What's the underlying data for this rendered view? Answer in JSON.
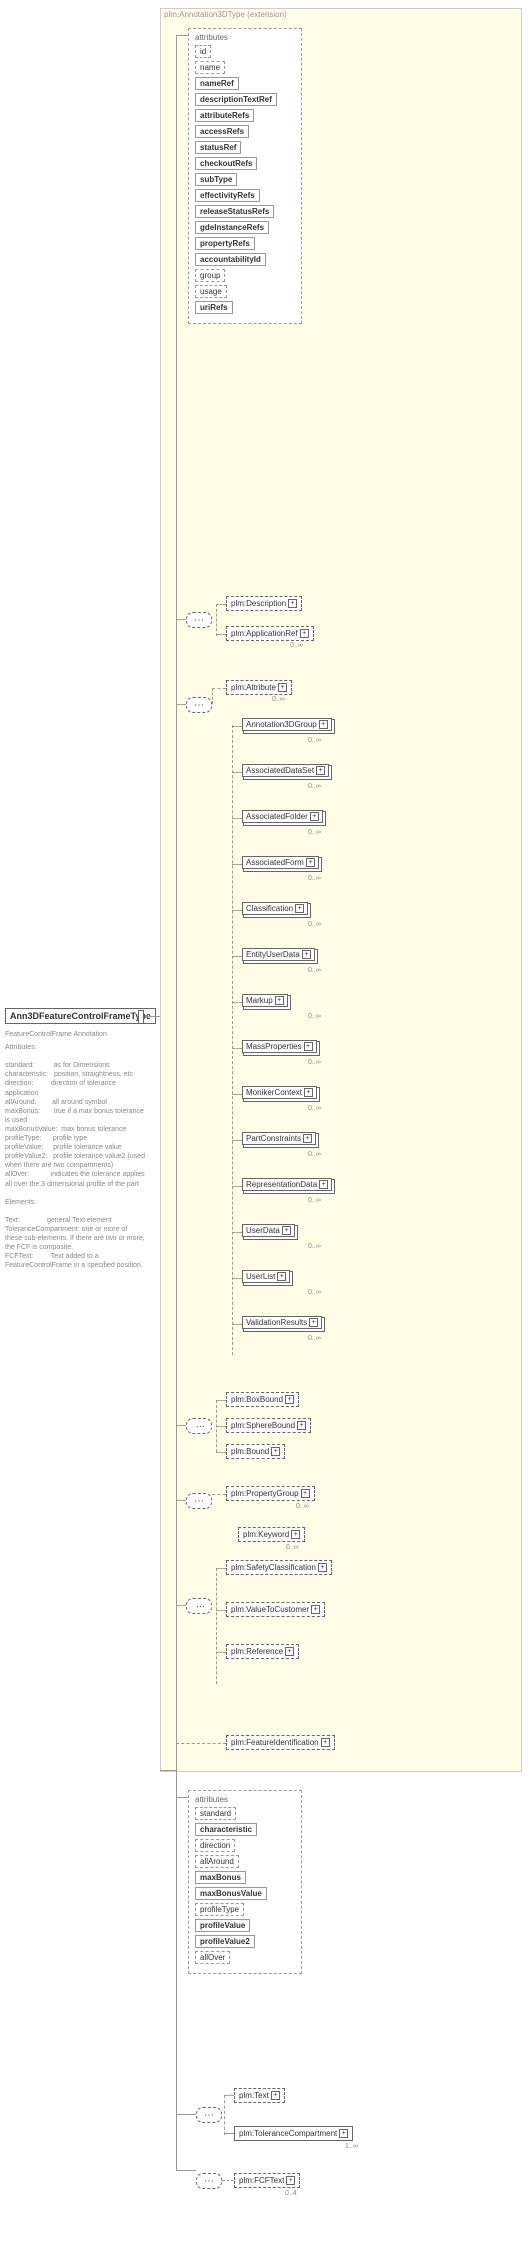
{
  "root": "Ann3DFeatureControlFrameType",
  "extension_label": "plm:Annotation3DType (extension)",
  "attributes_label": "attributes",
  "ext_attributes": [
    {
      "name": "id",
      "solid": false
    },
    {
      "name": "name",
      "solid": false
    },
    {
      "name": "nameRef",
      "solid": true
    },
    {
      "name": "descriptionTextRef",
      "solid": true
    },
    {
      "name": "attributeRefs",
      "solid": true
    },
    {
      "name": "accessRefs",
      "solid": true
    },
    {
      "name": "statusRef",
      "solid": true
    },
    {
      "name": "checkoutRefs",
      "solid": true
    },
    {
      "name": "subType",
      "solid": true
    },
    {
      "name": "effectivityRefs",
      "solid": true
    },
    {
      "name": "releaseStatusRefs",
      "solid": true
    },
    {
      "name": "gdeInstanceRefs",
      "solid": true
    },
    {
      "name": "propertyRefs",
      "solid": true
    },
    {
      "name": "accountabilityId",
      "solid": true
    },
    {
      "name": "group",
      "solid": false
    },
    {
      "name": "usage",
      "solid": false
    },
    {
      "name": "uriRefs",
      "solid": true
    }
  ],
  "seq1": [
    {
      "name": "plm:Description",
      "occ": "",
      "dashed": true,
      "plus": true
    },
    {
      "name": "plm:ApplicationRef",
      "occ": "0..∞",
      "dashed": true,
      "plus": true
    }
  ],
  "attribute_elem": {
    "name": "plm:Attribute",
    "occ": "0..∞"
  },
  "subst_group": [
    {
      "name": "Annotation3DGroup"
    },
    {
      "name": "AssociatedDataSet"
    },
    {
      "name": "AssociatedFolder"
    },
    {
      "name": "AssociatedForm"
    },
    {
      "name": "Classification"
    },
    {
      "name": "EntityUserData"
    },
    {
      "name": "Markup"
    },
    {
      "name": "MassProperties"
    },
    {
      "name": "MonikerContext"
    },
    {
      "name": "PartConstraints"
    },
    {
      "name": "RepresentationData"
    },
    {
      "name": "UserData"
    },
    {
      "name": "UserList"
    },
    {
      "name": "ValidationResults"
    }
  ],
  "bound_group": [
    {
      "name": "plm:BoxBound"
    },
    {
      "name": "plm:SphereBound"
    },
    {
      "name": "plm:Bound"
    }
  ],
  "property_group": {
    "name": "plm:PropertyGroup",
    "occ": "0..∞"
  },
  "keyword": {
    "name": "plm:Keyword",
    "occ": "0..∞"
  },
  "classif_group": [
    {
      "name": "plm:SafetyClassification"
    },
    {
      "name": "plm:ValueToCustomer"
    },
    {
      "name": "plm:Reference"
    }
  ],
  "feature_id": {
    "name": "plm:FeatureIdentification"
  },
  "local_attributes": [
    {
      "name": "standard",
      "solid": false
    },
    {
      "name": "characteristic",
      "solid": true
    },
    {
      "name": "direction",
      "solid": false
    },
    {
      "name": "allAround",
      "solid": false
    },
    {
      "name": "maxBonus",
      "solid": true
    },
    {
      "name": "maxBonusValue",
      "solid": true
    },
    {
      "name": "profileType",
      "solid": false
    },
    {
      "name": "profileValue",
      "solid": true
    },
    {
      "name": "profileValue2",
      "solid": true
    },
    {
      "name": "allOver",
      "solid": false
    }
  ],
  "text_elem": {
    "name": "plm:Text",
    "occ": ""
  },
  "tol_comp": {
    "name": "plm:ToleranceCompartment",
    "occ": "1..∞"
  },
  "fcf_text": {
    "name": "plm:FCFText",
    "occ": "0..4"
  },
  "doc": {
    "title": "FeatureControlFrame Annotation",
    "sections": "Attributes:\n\nstandard:          as for Dimensions\ncharacteristic:   position, straightness, etc\ndirection:         direction of tolerance application\nallAround:        all around symbol\nmaxBonus:       true if a max bonus tolerance is used\nmaxBonusValue:  max bonus tolerance\nprofileType:      profile type\nprofileValue:     profile tolerance value\nprofileValue2:   profile tolerance value2 (used when there are two compartments)\nallOver:           indicates the tolerance applies all over the 3 dimensional profile of the part\n\nElements:\n\nText:              general Text element\nToleranceCompartment: one or more of these sub-elements. If there are two or more, the FCF is composite.\nFCFText:         Text added to a FeatureControlFrame in a specified position."
  }
}
